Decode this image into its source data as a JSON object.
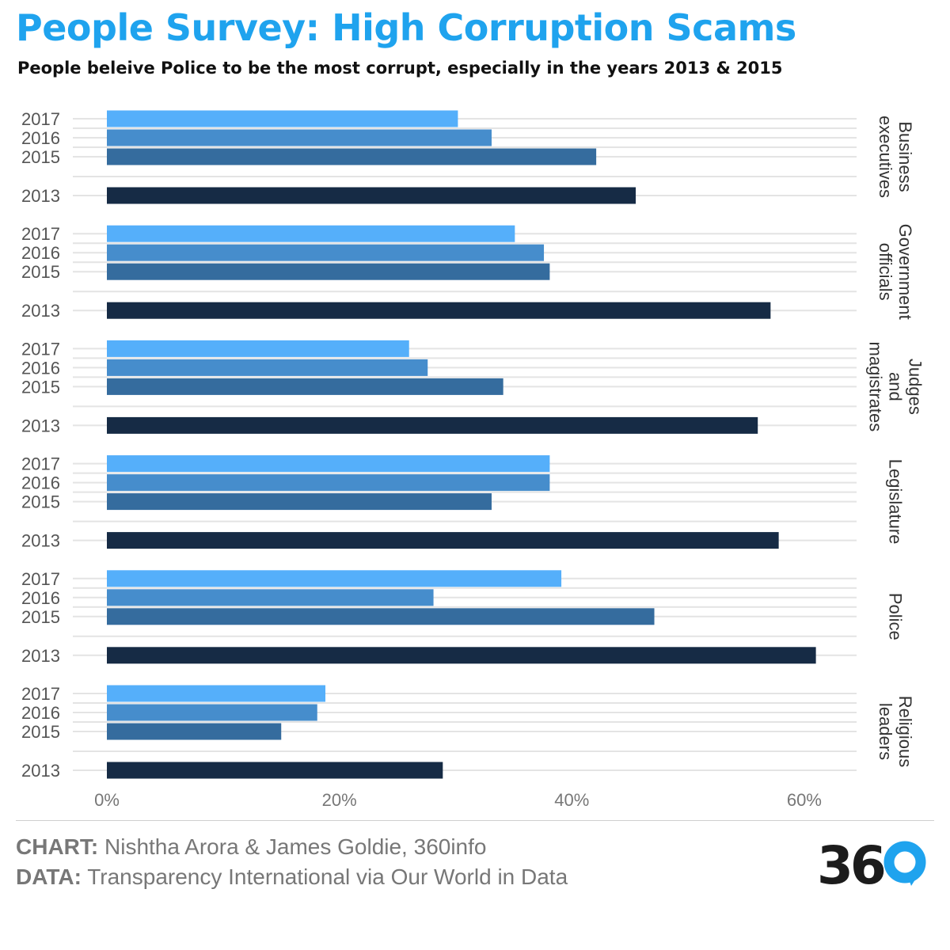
{
  "title": "People Survey: High Corruption Scams",
  "subtitle": "People beleive Police to be the most corrupt, especially in the years 2013 & 2015",
  "footer": {
    "chart_label": "CHART:",
    "chart_text": " Nishtha Arora & James Goldie, 360info",
    "data_label": "DATA:",
    "data_text": " Transparency International via Our World in Data"
  },
  "logo": {
    "text": "36",
    "ring_color": "#1fa3ee",
    "text_color": "#1c1c1c"
  },
  "colors": {
    "2017": "#55affa",
    "2016": "#468dcc",
    "2015": "#356c9e",
    "2013": "#162b45",
    "grid": "#e4e4e4",
    "tick_text": "#555555",
    "axis_text": "#777777"
  },
  "chart_data": {
    "type": "bar",
    "orientation": "horizontal",
    "years": [
      "2017",
      "2016",
      "2015",
      "2013"
    ],
    "categories": [
      {
        "name": [
          "Business",
          "executives"
        ],
        "values": {
          "2017": 30.2,
          "2016": 33.1,
          "2015": 42.1,
          "2013": 45.5
        }
      },
      {
        "name": [
          "Government",
          "officials"
        ],
        "values": {
          "2017": 35.1,
          "2016": 37.6,
          "2015": 38.1,
          "2013": 57.1
        }
      },
      {
        "name": [
          "Judges",
          "and",
          "magistrates"
        ],
        "values": {
          "2017": 26.0,
          "2016": 27.6,
          "2015": 34.1,
          "2013": 56.0
        }
      },
      {
        "name": [
          "Legislature"
        ],
        "values": {
          "2017": 38.1,
          "2016": 38.1,
          "2015": 33.1,
          "2013": 57.8
        }
      },
      {
        "name": [
          "Police"
        ],
        "values": {
          "2017": 39.1,
          "2016": 28.1,
          "2015": 47.1,
          "2013": 61.0
        }
      },
      {
        "name": [
          "Religious",
          "leaders"
        ],
        "values": {
          "2017": 18.8,
          "2016": 18.1,
          "2015": 15.0,
          "2013": 28.9
        }
      }
    ],
    "x_ticks": [
      "0%",
      "20%",
      "40%",
      "60%"
    ],
    "x_tick_values": [
      0,
      20,
      40,
      60
    ],
    "xlim": [
      0,
      64.5
    ],
    "xlabel": "",
    "ylabel": "",
    "grid": true,
    "legend": "none"
  }
}
